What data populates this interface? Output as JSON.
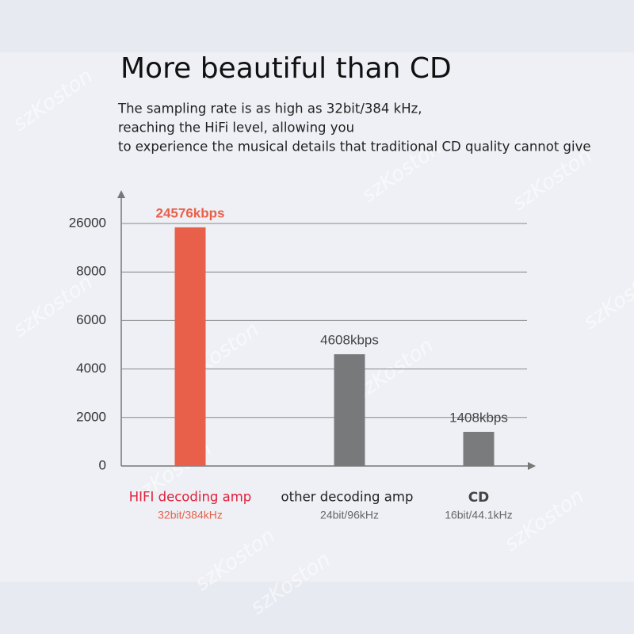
{
  "chart_data": {
    "type": "bar",
    "title": "More beautiful than CD",
    "subtitle": [
      "The sampling rate is as high as 32bit/384 kHz,",
      "reaching the HiFi level, allowing you",
      "to experience the musical details that traditional CD quality cannot give"
    ],
    "categories": [
      "HIFI decoding amp",
      "other decoding amp",
      "CD"
    ],
    "category_notes": [
      "32bit/384kHz",
      "24bit/96kHz",
      "16bit/44.1kHz"
    ],
    "values": [
      24576,
      4608,
      1408
    ],
    "value_labels": [
      "24576kbps",
      "4608kbps",
      "1408kbps"
    ],
    "colors": [
      "#e8604a",
      "#78797b",
      "#7a7b7d"
    ],
    "value_label_colors": [
      "#e8604a",
      "#444444",
      "#444444"
    ],
    "category_colors": [
      "#e0203a",
      "#222222",
      "#444444"
    ],
    "note_colors": [
      "#e8604a",
      "#666666",
      "#666666"
    ],
    "ylim": [
      0,
      26000
    ],
    "yticks": [
      0,
      2000,
      4000,
      6000,
      8000,
      26000
    ],
    "scale": "piecewise",
    "grid": true,
    "watermark": "szKoston"
  }
}
